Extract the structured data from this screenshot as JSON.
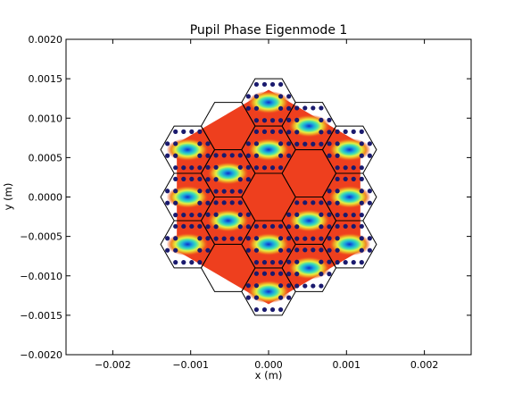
{
  "chart_data": {
    "type": "heatmap",
    "title": "Pupil Phase Eigenmode 1",
    "xlabel": "x (m)",
    "ylabel": "y (m)",
    "xlim": [
      -0.0026,
      0.0026
    ],
    "ylim": [
      -0.002,
      0.002
    ],
    "xticks": [
      -0.002,
      -0.001,
      0.0,
      0.001,
      0.002
    ],
    "xtick_labels": [
      "−0.002",
      "−0.001",
      "0.000",
      "0.001",
      "0.002"
    ],
    "yticks": [
      -0.002,
      -0.0015,
      -0.001,
      -0.0005,
      0.0,
      0.0005,
      0.001,
      0.0015,
      0.002
    ],
    "ytick_labels": [
      "−0.0020",
      "−0.0015",
      "−0.0010",
      "−0.0005",
      "0.0000",
      "0.0005",
      "0.0010",
      "0.0015",
      "0.0020"
    ],
    "grid": false,
    "background_color": "#ee3f1e",
    "segment_outline_color": "#000000",
    "actuator_color": "#1a1a6e",
    "segments": [
      {
        "cx": 0.0,
        "cy": 0.0,
        "active": false
      },
      {
        "cx": 0.0,
        "cy": 0.0012,
        "active": true
      },
      {
        "cx": 0.0,
        "cy": 0.0006,
        "active": true
      },
      {
        "cx": 0.0,
        "cy": -0.0006,
        "active": true
      },
      {
        "cx": 0.0,
        "cy": -0.0012,
        "active": true
      },
      {
        "cx": 0.000519,
        "cy": 0.0009,
        "active": true
      },
      {
        "cx": 0.000519,
        "cy": 0.0003,
        "active": false
      },
      {
        "cx": 0.000519,
        "cy": -0.0003,
        "active": true
      },
      {
        "cx": 0.000519,
        "cy": -0.0009,
        "active": true
      },
      {
        "cx": -0.000519,
        "cy": 0.0009,
        "active": false
      },
      {
        "cx": -0.000519,
        "cy": 0.0003,
        "active": true
      },
      {
        "cx": -0.000519,
        "cy": -0.0003,
        "active": true
      },
      {
        "cx": -0.000519,
        "cy": -0.0009,
        "active": false
      },
      {
        "cx": 0.001039,
        "cy": 0.0006,
        "active": true
      },
      {
        "cx": 0.001039,
        "cy": 0.0,
        "active": true
      },
      {
        "cx": 0.001039,
        "cy": -0.0006,
        "active": true
      },
      {
        "cx": -0.001039,
        "cy": 0.0006,
        "active": true
      },
      {
        "cx": -0.001039,
        "cy": 0.0,
        "active": true
      },
      {
        "cx": -0.001039,
        "cy": -0.0006,
        "active": true
      }
    ],
    "segment_radius": 0.000346
  }
}
